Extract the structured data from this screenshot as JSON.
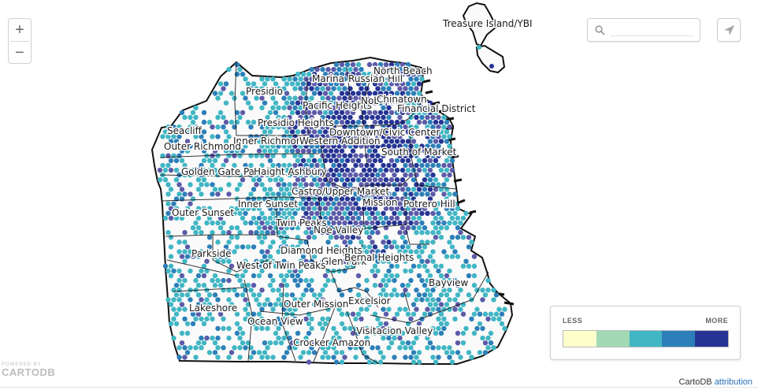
{
  "map": {
    "neighborhoods": [
      "Treasure Island/YBI",
      "Marina",
      "Russian Hill",
      "North Beach",
      "Presidio",
      "Pacific Heights",
      "Nob Hill",
      "Chinatown",
      "Financial District",
      "Seacliff",
      "Presidio Heights",
      "Inner Richmond",
      "Western Addition",
      "Downtown/Civic Center",
      "Outer Richmond",
      "South of Market",
      "Golden Gate Park",
      "Haight Ashbury",
      "Castro/Upper Market",
      "Mission",
      "Potrero Hill",
      "Outer Sunset",
      "Inner Sunset",
      "Twin Peaks",
      "Noe Valley",
      "Diamond Heights",
      "Parkside",
      "Glen Park",
      "West of Twin Peaks",
      "Bernal Heights",
      "Bayview",
      "Outer Mission",
      "Excelsior",
      "Lakeshore",
      "Ocean View",
      "Visitacion Valley",
      "Crocker Amazon"
    ],
    "hex_colors": [
      "#ffffcc",
      "#a1dab4",
      "#41b6c4",
      "#2c7fb8",
      "#253494",
      "#5c5aa8"
    ]
  },
  "controls": {
    "zoom_in": "+",
    "zoom_out": "−",
    "search_placeholder": "",
    "search_icon": "search-icon",
    "share_icon": "share-arrow-icon"
  },
  "legend": {
    "less": "LESS",
    "more": "MORE",
    "colors": [
      "#ffffcc",
      "#a1dab4",
      "#41b6c4",
      "#2c7fb8",
      "#253494"
    ]
  },
  "footer": {
    "powered_line1": "POWERED BY",
    "powered_line2": "CARTODB",
    "attribution_prefix": "CartoDB",
    "attribution_link": "attribution"
  }
}
